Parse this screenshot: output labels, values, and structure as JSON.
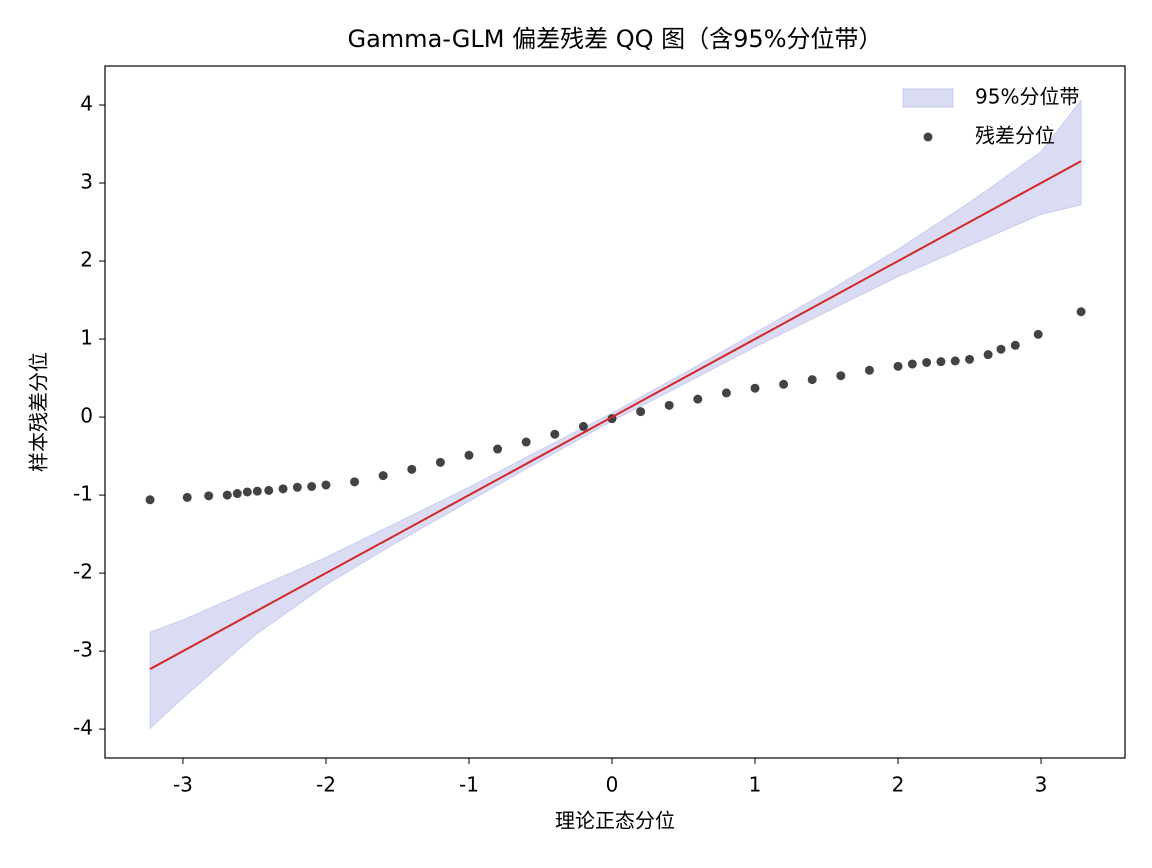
{
  "chart_data": {
    "type": "scatter",
    "title": "Gamma-GLM 偏差残差 QQ 图（含95%分位带）",
    "xlabel": "理论正态分位",
    "ylabel": "样本残差分位",
    "xlim": [
      -3.545,
      3.587
    ],
    "ylim": [
      -4.37,
      4.5
    ],
    "xticks": [
      -3,
      -2,
      -1,
      0,
      1,
      2,
      3
    ],
    "yticks": [
      -4,
      -3,
      -2,
      -1,
      0,
      1,
      2,
      3,
      4
    ],
    "legend": "upper right",
    "band": {
      "name": "95%分位带",
      "color": "#c9cdee",
      "x": [
        -3.23,
        -3,
        -2.5,
        -2,
        -1.5,
        -1,
        -0.5,
        0,
        0.5,
        1,
        1.5,
        2,
        2.5,
        3,
        3.28
      ],
      "upper": [
        -2.76,
        -2.6,
        -2.2,
        -1.8,
        -1.35,
        -0.9,
        -0.42,
        0.05,
        0.56,
        1.08,
        1.6,
        2.15,
        2.75,
        3.4,
        4.06
      ],
      "lower": [
        -3.99,
        -3.6,
        -2.8,
        -2.15,
        -1.6,
        -1.08,
        -0.56,
        -0.05,
        0.42,
        0.9,
        1.35,
        1.8,
        2.2,
        2.6,
        2.72
      ]
    },
    "series": [
      {
        "name": "残差分位",
        "color": "#222222",
        "x": [
          -3.23,
          -2.97,
          -2.82,
          -2.69,
          -2.62,
          -2.55,
          -2.48,
          -2.4,
          -2.3,
          -2.2,
          -2.1,
          -2.0,
          -1.8,
          -1.6,
          -1.4,
          -1.2,
          -1.0,
          -0.8,
          -0.6,
          -0.4,
          -0.2,
          0,
          0.2,
          0.4,
          0.6,
          0.8,
          1.0,
          1.2,
          1.4,
          1.6,
          1.8,
          2.0,
          2.1,
          2.2,
          2.3,
          2.4,
          2.5,
          2.63,
          2.72,
          2.82,
          2.98,
          3.28
        ],
        "values": [
          -1.06,
          -1.03,
          -1.01,
          -1.0,
          -0.98,
          -0.96,
          -0.95,
          -0.94,
          -0.92,
          -0.9,
          -0.89,
          -0.87,
          -0.83,
          -0.75,
          -0.67,
          -0.58,
          -0.49,
          -0.41,
          -0.32,
          -0.22,
          -0.12,
          -0.02,
          0.07,
          0.15,
          0.23,
          0.31,
          0.37,
          0.42,
          0.48,
          0.53,
          0.6,
          0.65,
          0.68,
          0.7,
          0.71,
          0.72,
          0.74,
          0.8,
          0.87,
          0.92,
          1.06,
          1.35
        ]
      }
    ],
    "line": {
      "color": "#d62728",
      "x": [
        -3.23,
        3.28
      ],
      "values": [
        -3.23,
        3.28
      ]
    }
  }
}
